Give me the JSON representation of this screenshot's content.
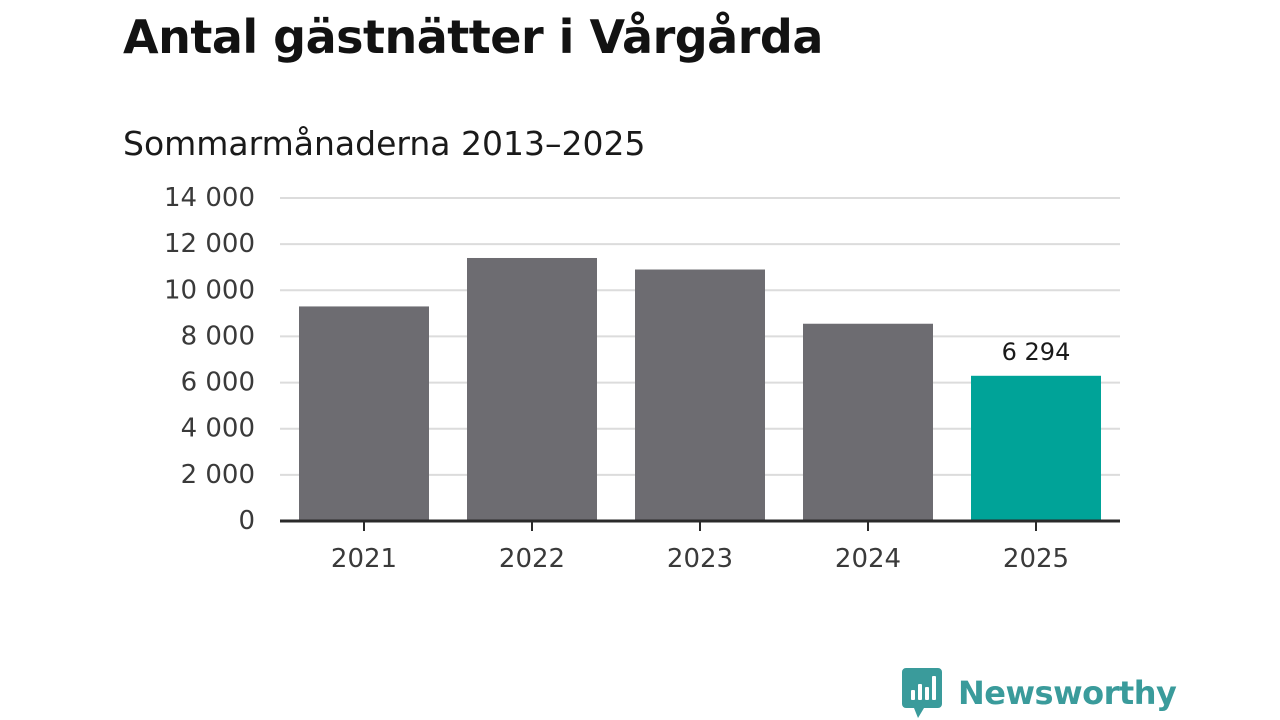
{
  "colors": {
    "bar_default": "#6d6c71",
    "bar_highlight": "#00a398",
    "grid": "#dcdcdc",
    "axis": "#2a2a2a",
    "brand": "#3a9b9b"
  },
  "chart_data": {
    "type": "bar",
    "title": "Antal gästnätter i Vårgårda",
    "subtitle": "Sommarmånaderna 2013–2025",
    "categories": [
      "2021",
      "2022",
      "2023",
      "2024",
      "2025"
    ],
    "values": [
      9300,
      11400,
      10900,
      8550,
      6294
    ],
    "highlight_index": 4,
    "data_labels": [
      {
        "category": "2025",
        "text": "6 294"
      }
    ],
    "y_ticks": [
      {
        "value": 0,
        "label": "0"
      },
      {
        "value": 2000,
        "label": "2 000"
      },
      {
        "value": 4000,
        "label": "4 000"
      },
      {
        "value": 6000,
        "label": "6 000"
      },
      {
        "value": 8000,
        "label": "8 000"
      },
      {
        "value": 10000,
        "label": "10 000"
      },
      {
        "value": 12000,
        "label": "12 000"
      },
      {
        "value": 14000,
        "label": "14 000"
      }
    ],
    "ylim": [
      0,
      14000
    ],
    "xlabel": "",
    "ylabel": "",
    "grid": true,
    "legend": "none"
  },
  "brand": {
    "name": "Newsworthy",
    "icon": "newsworthy-logo-icon"
  }
}
